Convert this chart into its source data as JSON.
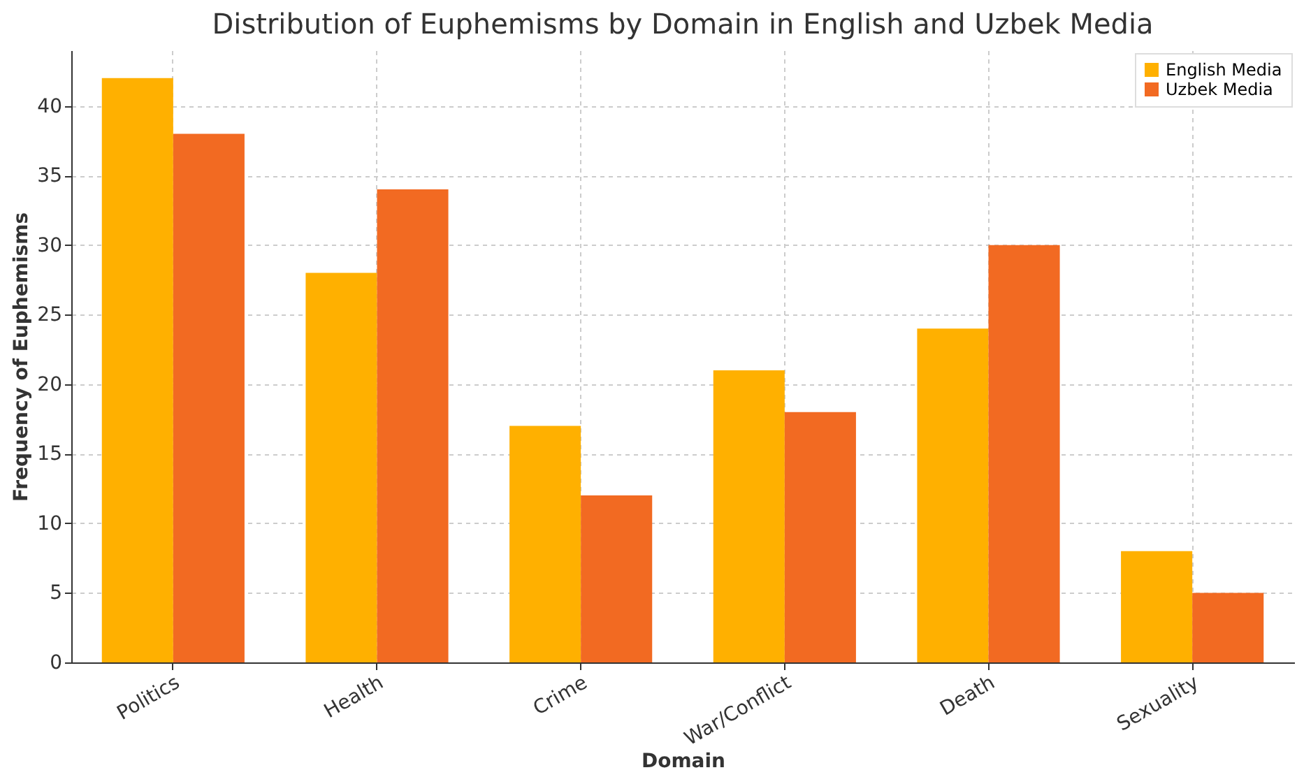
{
  "chart_data": {
    "type": "bar",
    "title": "Distribution of Euphemisms by Domain in English and Uzbek Media",
    "xlabel": "Domain",
    "ylabel": "Frequency of Euphemisms",
    "categories": [
      "Politics",
      "Health",
      "Crime",
      "War/Conflict",
      "Death",
      "Sexuality"
    ],
    "series": [
      {
        "name": "English Media",
        "color": "#ffb000",
        "values": [
          42,
          28,
          17,
          21,
          24,
          8
        ]
      },
      {
        "name": "Uzbek Media",
        "color": "#f26a22",
        "values": [
          38,
          34,
          12,
          18,
          30,
          5
        ]
      }
    ],
    "ylim": [
      0,
      44
    ],
    "yticks": [
      0,
      5,
      10,
      15,
      20,
      25,
      30,
      35,
      40
    ],
    "grid": true,
    "legend": "top right"
  }
}
